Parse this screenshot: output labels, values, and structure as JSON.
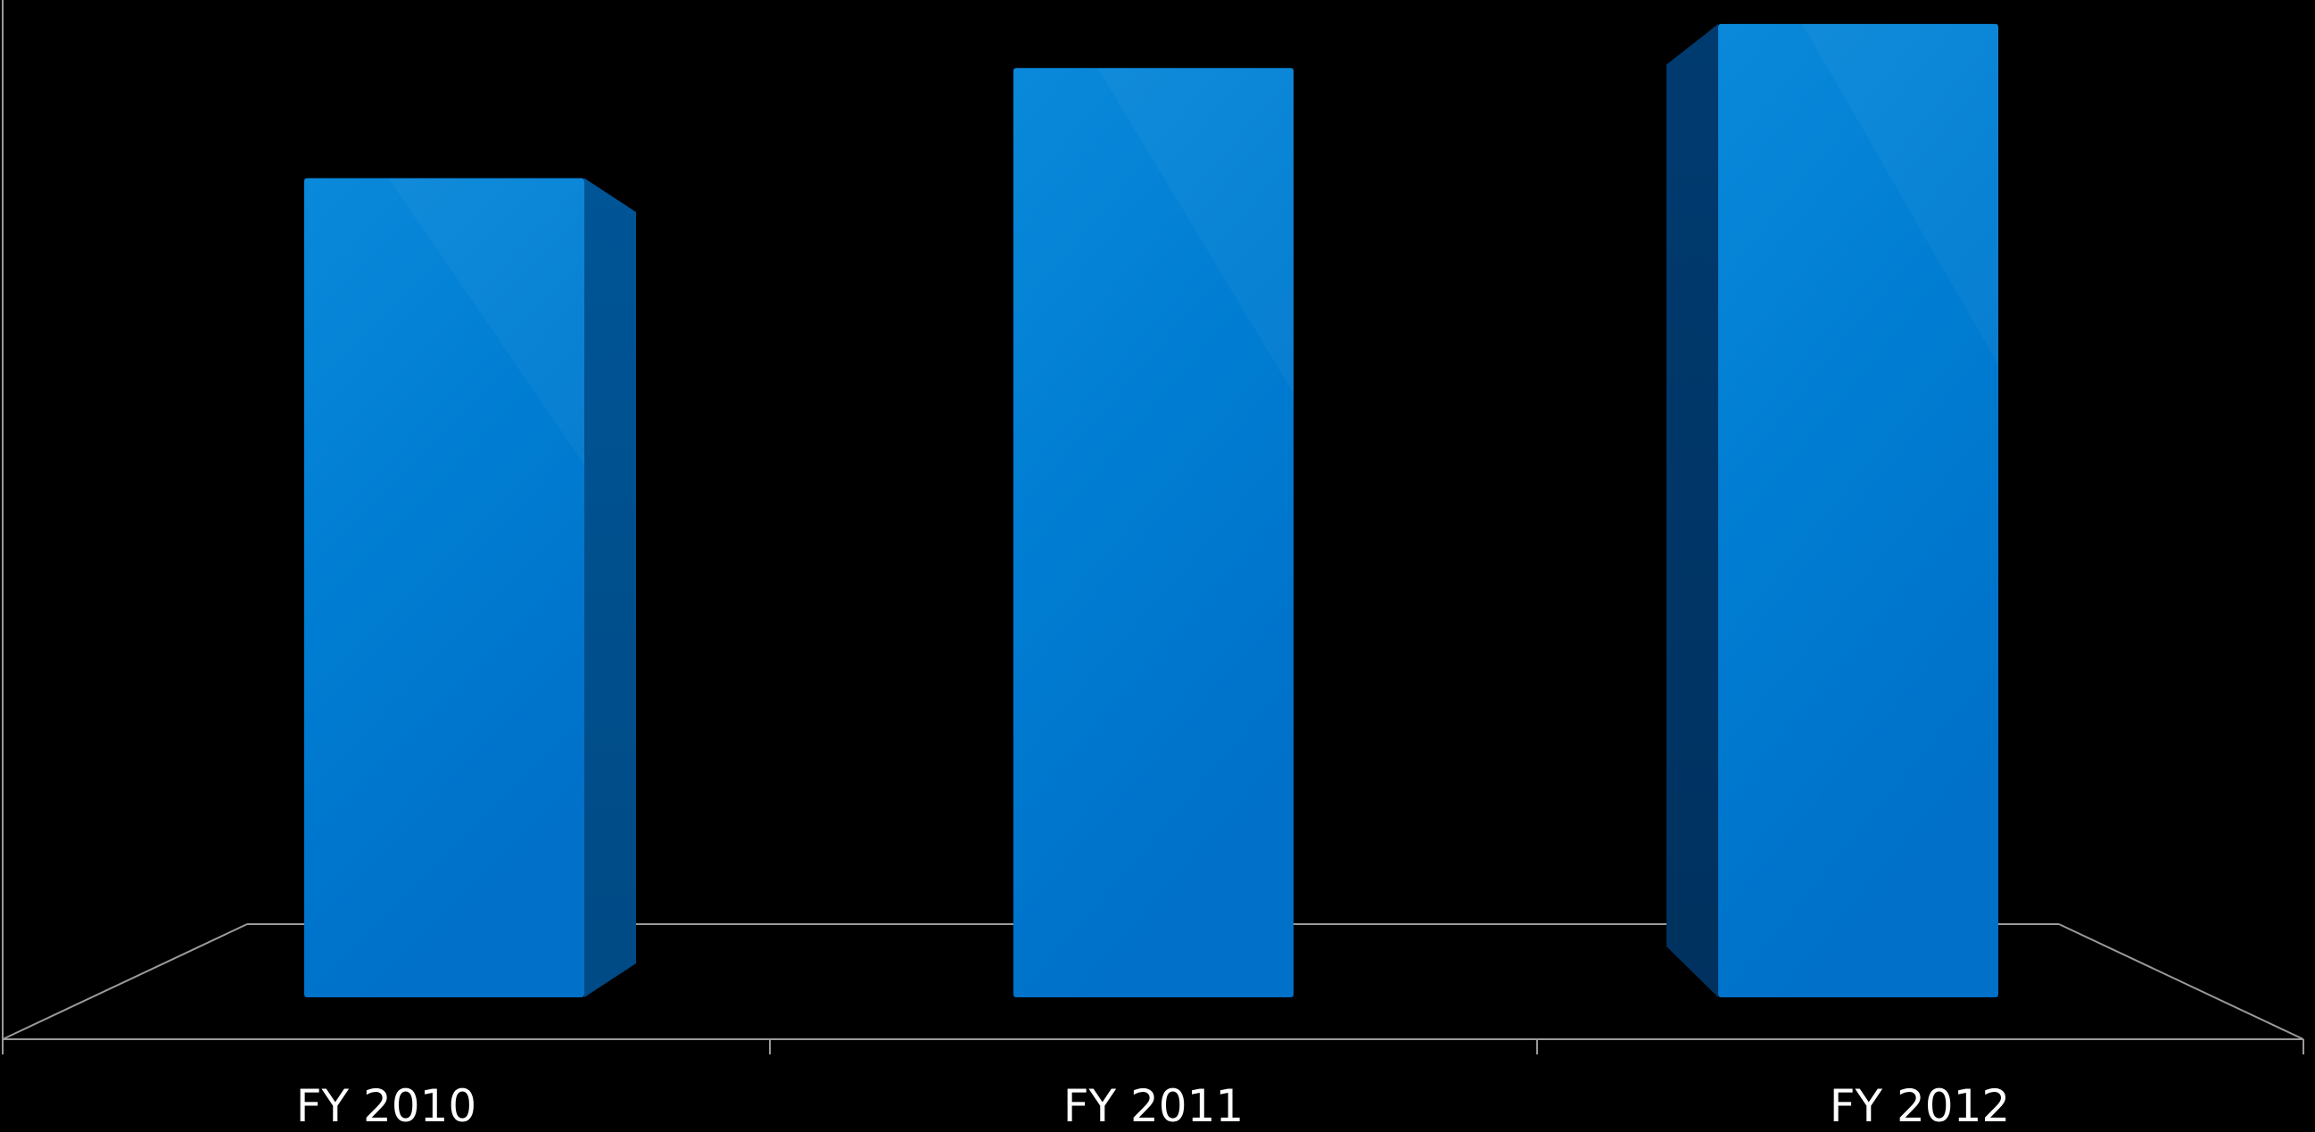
{
  "chart_data": {
    "type": "bar",
    "categories": [
      "FY 2010",
      "FY 2011",
      "FY 2012"
    ],
    "values": [
      930,
      1055,
      1105
    ],
    "ylim": [
      0,
      1110
    ],
    "grid": false,
    "legend": "none",
    "style": "3d-column"
  },
  "colors": {
    "background": "#000000",
    "bar_front_top": "#0a86d8",
    "bar_front_bottom": "#0072cc",
    "bar_side": "#004f8c",
    "bar_side_left": "#00386a",
    "axis": "#9a9a9a",
    "label": "#ffffff"
  }
}
